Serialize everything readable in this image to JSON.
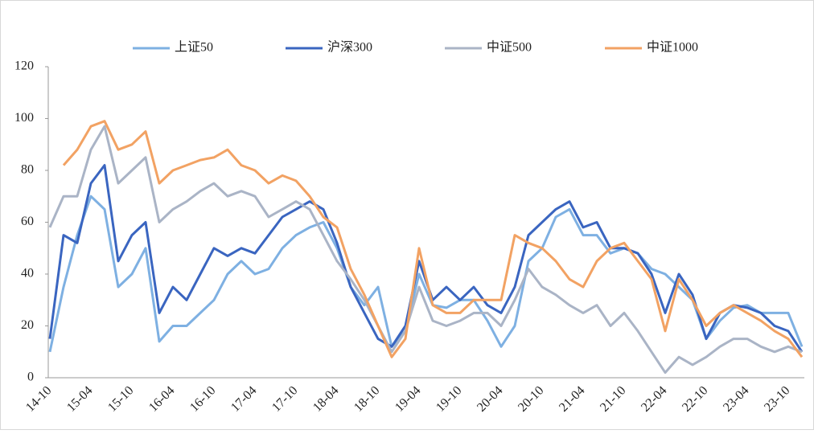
{
  "chart_data": {
    "type": "line",
    "categories": [
      "14-10",
      null,
      null,
      "15-04",
      null,
      null,
      "15-10",
      null,
      null,
      "16-04",
      null,
      null,
      "16-10",
      null,
      null,
      "17-04",
      null,
      null,
      "17-10",
      null,
      null,
      "18-04",
      null,
      null,
      "18-10",
      null,
      null,
      "19-04",
      null,
      null,
      "19-10",
      null,
      null,
      "20-04",
      null,
      null,
      "20-10",
      null,
      null,
      "21-04",
      null,
      null,
      "21-10",
      null,
      null,
      "22-04",
      null,
      null,
      "22-10",
      null,
      null,
      "23-04",
      null,
      null,
      "23-10",
      null
    ],
    "series": [
      {
        "name": "上证50",
        "color": "#7eb0e2",
        "values": [
          10,
          35,
          55,
          70,
          65,
          35,
          40,
          50,
          14,
          20,
          20,
          25,
          30,
          40,
          45,
          40,
          42,
          50,
          55,
          58,
          60,
          50,
          35,
          28,
          35,
          12,
          18,
          40,
          28,
          27,
          30,
          30,
          22,
          12,
          20,
          45,
          50,
          62,
          65,
          55,
          55,
          48,
          50,
          48,
          42,
          40,
          35,
          30,
          15,
          22,
          27,
          28,
          25,
          25,
          25,
          12
        ]
      },
      {
        "name": "沪深300",
        "color": "#3a65c0",
        "values": [
          15,
          55,
          52,
          75,
          82,
          45,
          55,
          60,
          25,
          35,
          30,
          40,
          50,
          47,
          50,
          48,
          55,
          62,
          65,
          68,
          65,
          52,
          35,
          25,
          15,
          12,
          20,
          45,
          30,
          35,
          30,
          35,
          28,
          25,
          35,
          55,
          60,
          65,
          68,
          58,
          60,
          50,
          50,
          48,
          40,
          25,
          40,
          32,
          15,
          25,
          28,
          27,
          25,
          20,
          18,
          10
        ]
      },
      {
        "name": "中证500",
        "color": "#aab4c6",
        "values": [
          58,
          70,
          70,
          88,
          97,
          75,
          80,
          85,
          60,
          65,
          68,
          72,
          75,
          70,
          72,
          70,
          62,
          65,
          68,
          65,
          55,
          45,
          38,
          30,
          20,
          10,
          18,
          35,
          22,
          20,
          22,
          25,
          25,
          20,
          30,
          42,
          35,
          32,
          28,
          25,
          28,
          20,
          25,
          18,
          10,
          2,
          8,
          5,
          8,
          12,
          15,
          15,
          12,
          10,
          12,
          10
        ]
      },
      {
        "name": "中证1000",
        "color": "#f2a263",
        "values": [
          null,
          82,
          88,
          97,
          99,
          88,
          90,
          95,
          75,
          80,
          82,
          84,
          85,
          88,
          82,
          80,
          75,
          78,
          76,
          70,
          62,
          58,
          42,
          32,
          20,
          8,
          15,
          50,
          28,
          25,
          25,
          30,
          30,
          30,
          55,
          52,
          50,
          45,
          38,
          35,
          45,
          50,
          52,
          45,
          38,
          18,
          38,
          30,
          20,
          25,
          28,
          25,
          22,
          18,
          15,
          8
        ]
      }
    ],
    "ylim": [
      0,
      120
    ],
    "yticks": [
      0,
      20,
      40,
      60,
      80,
      100,
      120
    ],
    "legend": "top"
  }
}
